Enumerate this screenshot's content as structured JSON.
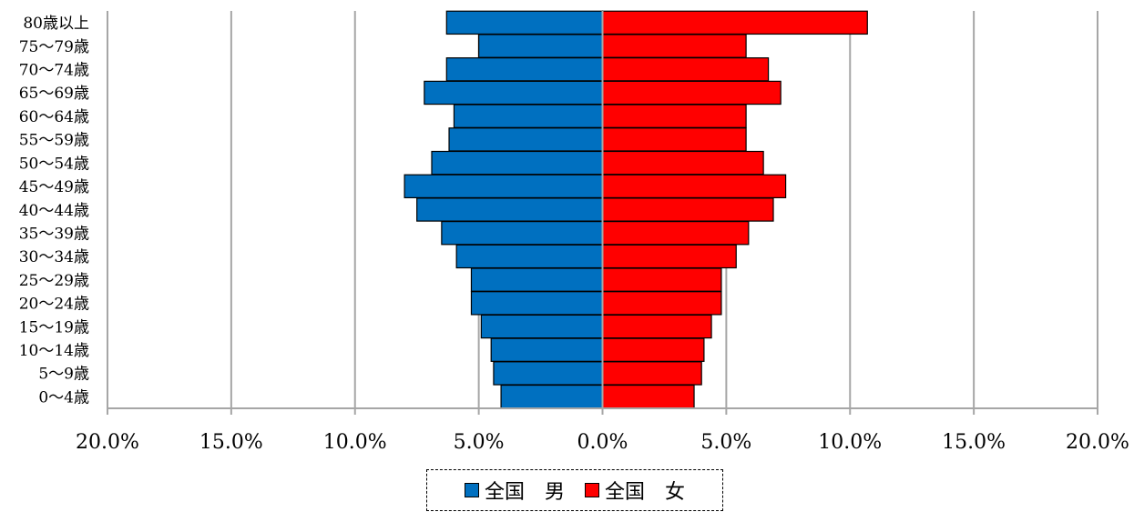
{
  "chart_data": {
    "type": "bar",
    "orientation": "horizontal-population-pyramid",
    "categories": [
      "0～4歳",
      "5～9歳",
      "10～14歳",
      "15～19歳",
      "20～24歳",
      "25～29歳",
      "30～34歳",
      "35～39歳",
      "40～44歳",
      "45～49歳",
      "50～54歳",
      "55～59歳",
      "60～64歳",
      "65～69歳",
      "70～74歳",
      "75～79歳",
      "80歳以上"
    ],
    "series": [
      {
        "name": "全国　男",
        "color": "#0070c0",
        "values": [
          4.1,
          4.4,
          4.5,
          4.9,
          5.3,
          5.3,
          5.9,
          6.5,
          7.5,
          8.0,
          6.9,
          6.2,
          6.0,
          7.2,
          6.3,
          5.0,
          6.3
        ]
      },
      {
        "name": "全国　女",
        "color": "#ff0000",
        "values": [
          3.7,
          4.0,
          4.1,
          4.4,
          4.8,
          4.8,
          5.4,
          5.9,
          6.9,
          7.4,
          6.5,
          5.8,
          5.8,
          7.2,
          6.7,
          5.8,
          10.7
        ]
      }
    ],
    "x_ticks": [
      "20.0%",
      "15.0%",
      "10.0%",
      "5.0%",
      "0.0%",
      "5.0%",
      "10.0%",
      "15.0%",
      "20.0%"
    ],
    "xlim": [
      -20,
      20
    ],
    "grid": true,
    "legend_position": "bottom"
  }
}
